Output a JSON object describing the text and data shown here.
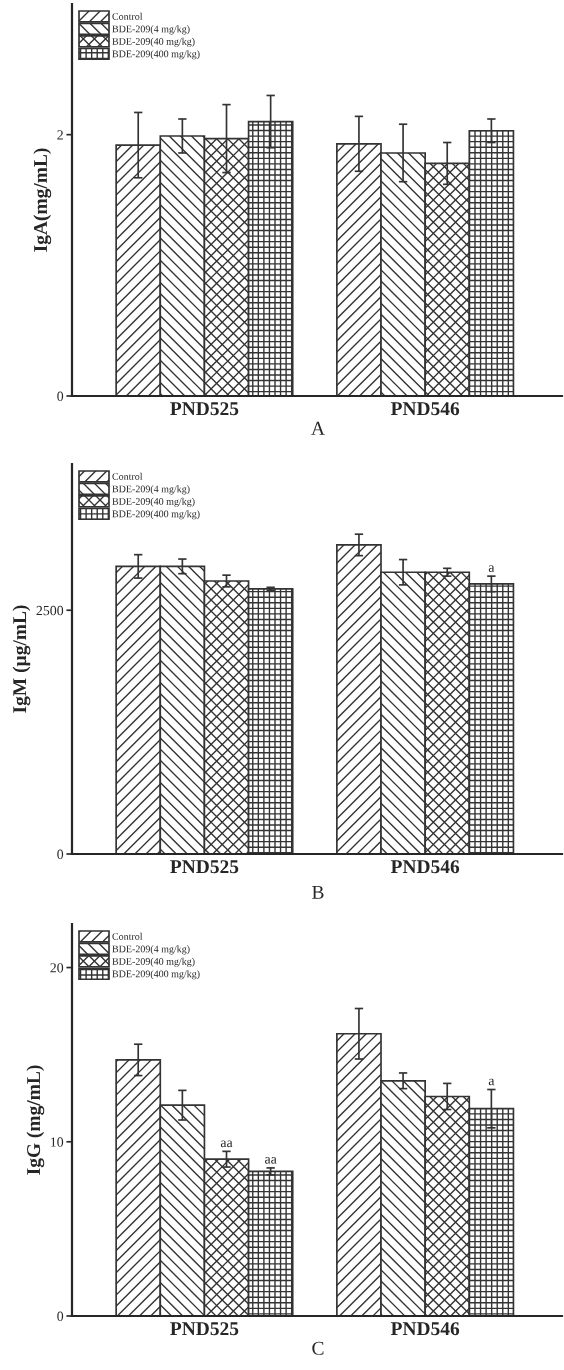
{
  "chart_data": [
    {
      "type": "bar",
      "ylabel": "IgA(mg/mL)",
      "xlabel": "A",
      "categories": [
        "PND525",
        "PND546"
      ],
      "ylim": [
        0,
        3
      ],
      "yticks": [
        0,
        2
      ],
      "legend": "top left",
      "series": [
        {
          "name": "Control",
          "color": "#333333",
          "values": [
            1.92,
            1.93
          ],
          "errors": [
            0.25,
            0.21
          ]
        },
        {
          "name": "BDE-209(4 mg/kg)",
          "color": "#333333",
          "values": [
            1.99,
            1.86
          ],
          "errors": [
            0.13,
            0.22
          ]
        },
        {
          "name": "BDE-209(40 mg/kg)",
          "color": "#333333",
          "values": [
            1.97,
            1.78
          ],
          "errors": [
            0.26,
            0.16
          ]
        },
        {
          "name": "BDE-209(400 mg/kg)",
          "color": "#333333",
          "values": [
            2.1,
            2.03
          ],
          "errors": [
            0.2,
            0.09
          ]
        }
      ]
    },
    {
      "type": "bar",
      "ylabel": "IgM (µg/mL)",
      "xlabel": "B",
      "categories": [
        "PND525",
        "PND546"
      ],
      "ylim": [
        0,
        4000
      ],
      "yticks": [
        0,
        2500
      ],
      "legend": "top left",
      "series": [
        {
          "name": "Control",
          "color": "#333333",
          "values": [
            2950,
            3170
          ],
          "errors": [
            120,
            110
          ]
        },
        {
          "name": "BDE-209(4 mg/kg)",
          "color": "#333333",
          "values": [
            2950,
            2890
          ],
          "errors": [
            75,
            130
          ]
        },
        {
          "name": "BDE-209(40 mg/kg)",
          "color": "#333333",
          "values": [
            2800,
            2890
          ],
          "errors": [
            60,
            40
          ]
        },
        {
          "name": "BDE-209(400 mg/kg)",
          "color": "#333333",
          "values": [
            2720,
            2770
          ],
          "errors": [
            15,
            80
          ],
          "value_labels": [
            null,
            "a"
          ]
        }
      ]
    },
    {
      "type": "bar",
      "ylabel": "IgG (mg/mL)",
      "xlabel": "C",
      "categories": [
        "PND525",
        "PND546"
      ],
      "ylim": [
        0,
        22.5
      ],
      "yticks": [
        0,
        10,
        20
      ],
      "legend": "top left",
      "series": [
        {
          "name": "Control",
          "color": "#333333",
          "values": [
            14.7,
            16.2
          ],
          "errors": [
            0.9,
            1.45
          ]
        },
        {
          "name": "BDE-209(4 mg/kg)",
          "color": "#333333",
          "values": [
            12.1,
            13.5
          ],
          "errors": [
            0.85,
            0.45
          ]
        },
        {
          "name": "BDE-209(40 mg/kg)",
          "color": "#333333",
          "values": [
            9.0,
            12.6
          ],
          "errors": [
            0.45,
            0.75
          ],
          "value_labels": [
            "aa",
            null
          ]
        },
        {
          "name": "BDE-209(400 mg/kg)",
          "color": "#333333",
          "values": [
            8.3,
            11.9
          ],
          "errors": [
            0.2,
            1.1
          ],
          "value_labels": [
            "aa",
            "a"
          ]
        }
      ]
    }
  ]
}
